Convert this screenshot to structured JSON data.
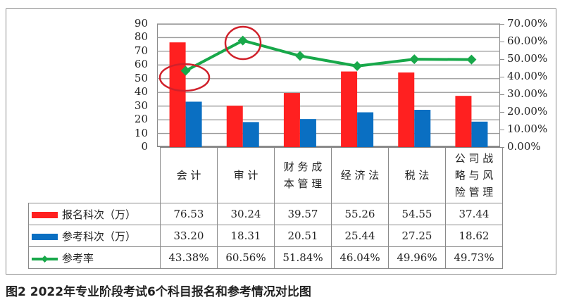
{
  "chart_data": {
    "type": "bar",
    "title": "",
    "categories": [
      "会计",
      "审计",
      "财务成本管理",
      "经济法",
      "税法",
      "公司战略与风险管理"
    ],
    "category_display": [
      "会计",
      "审计",
      "财务成\n本管理",
      "经济法",
      "税法",
      "公司战\n略与风\n险管理"
    ],
    "series": [
      {
        "name": "报名科次（万）",
        "type": "bar",
        "axis": "left",
        "color": "#ff2020",
        "values": [
          76.53,
          30.24,
          39.57,
          55.26,
          54.55,
          37.44
        ],
        "labels": [
          "76.53",
          "30.24",
          "39.57",
          "55.26",
          "54.55",
          "37.44"
        ]
      },
      {
        "name": "参考科次（万）",
        "type": "bar",
        "axis": "left",
        "color": "#0a6fc2",
        "values": [
          33.2,
          18.31,
          20.51,
          25.44,
          27.25,
          18.62
        ],
        "labels": [
          "33.20",
          "18.31",
          "20.51",
          "25.44",
          "27.25",
          "18.62"
        ]
      },
      {
        "name": "参考率",
        "type": "line",
        "axis": "right",
        "color": "#18a84a",
        "values": [
          43.38,
          60.56,
          51.84,
          46.04,
          49.96,
          49.73
        ],
        "labels": [
          "43.38%",
          "60.56%",
          "51.84%",
          "46.04%",
          "49.96%",
          "49.73%"
        ]
      }
    ],
    "ylim": [
      0,
      90
    ],
    "yticks": [
      "0",
      "10",
      "20",
      "30",
      "40",
      "50",
      "60",
      "70",
      "80",
      "90"
    ],
    "y2lim": [
      0,
      70
    ],
    "y2ticks": [
      "0.00%",
      "10.00%",
      "20.00%",
      "30.00%",
      "40.00%",
      "50.00%",
      "60.00%",
      "70.00%"
    ],
    "grid": true,
    "legend_position": "data-table",
    "annotations": [
      {
        "type": "ellipse",
        "color": "#d0202a",
        "target": "会计 参考率 point"
      },
      {
        "type": "circle",
        "color": "#d0202a",
        "target": "审计 参考率 point"
      }
    ]
  },
  "caption": "图2  2022年专业阶段考试6个科目报名和参考情况对比图",
  "table": {
    "rows": [
      {
        "legend": "报名科次（万）",
        "color": "#ff2020",
        "values": [
          "76.53",
          "30.24",
          "39.57",
          "55.26",
          "54.55",
          "37.44"
        ]
      },
      {
        "legend": "参考科次（万）",
        "color": "#0a6fc2",
        "values": [
          "33.20",
          "18.31",
          "20.51",
          "25.44",
          "27.25",
          "18.62"
        ]
      },
      {
        "legend": "参考率",
        "color": "#18a84a",
        "values": [
          "43.38%",
          "60.56%",
          "51.84%",
          "46.04%",
          "49.96%",
          "49.73%"
        ]
      }
    ],
    "categories": [
      "会计",
      "审计",
      "财务成本管理",
      "经济法",
      "税法",
      "公司战略与风险管理"
    ]
  }
}
